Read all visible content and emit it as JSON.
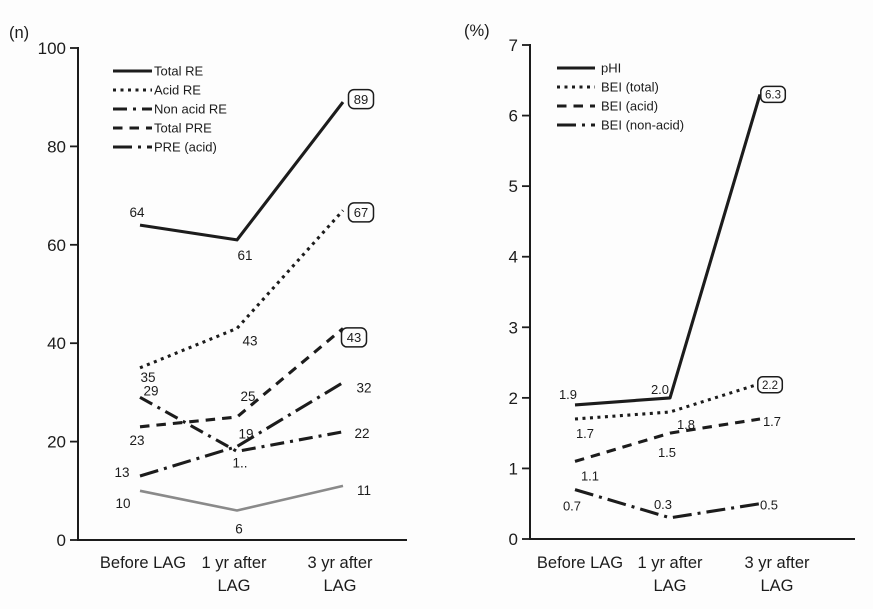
{
  "figure": {
    "background_color": "#fdfdfd",
    "ink_color": "#1c1c1c",
    "gray_line_color": "#8a8a8a"
  },
  "chart_data": [
    {
      "panel": "left",
      "type": "line",
      "title": "",
      "xlabel": "",
      "ylabel": "(n)",
      "ylim": [
        0,
        100
      ],
      "yticks": [
        0,
        20,
        40,
        60,
        80,
        100
      ],
      "grid": false,
      "legend_position": "top-left-inside",
      "categories": [
        "Before LAG",
        "1 yr after\nLAG",
        "3 yr after\nLAG"
      ],
      "series": [
        {
          "name": "Total RE",
          "in_legend": true,
          "style": "solid",
          "color": "#1c1c1c",
          "values": [
            64,
            61,
            89
          ],
          "point_labels": [
            {
              "text": "64",
              "dx": -3,
              "dy": -8,
              "boxed": false
            },
            {
              "text": "61",
              "dx": 8,
              "dy": 20,
              "boxed": false
            },
            {
              "text": "89",
              "dx": 18,
              "dy": -3,
              "boxed": true
            }
          ]
        },
        {
          "name": "Acid RE",
          "in_legend": true,
          "style": "dotted",
          "color": "#1c1c1c",
          "values": [
            35,
            43,
            67
          ],
          "point_labels": [
            {
              "text": "35",
              "dx": 8,
              "dy": 14,
              "boxed": false
            },
            {
              "text": "43",
              "dx": 13,
              "dy": 17,
              "boxed": false
            },
            {
              "text": "67",
              "dx": 18,
              "dy": 2,
              "boxed": true
            }
          ]
        },
        {
          "name": "Non acid RE",
          "in_legend": true,
          "style": "dash-dot",
          "color": "#1c1c1c",
          "values": [
            29,
            18,
            22
          ],
          "point_labels": [
            {
              "text": "29",
              "dx": 11,
              "dy": -2,
              "boxed": false
            },
            {
              "text": "1..",
              "dx": 3,
              "dy": 16,
              "boxed": false
            },
            {
              "text": "22",
              "dx": 19,
              "dy": 6,
              "boxed": false
            }
          ]
        },
        {
          "name": "Total PRE",
          "in_legend": true,
          "style": "dashed",
          "color": "#1c1c1c",
          "values": [
            23,
            25,
            43
          ],
          "point_labels": [
            {
              "text": "23",
              "dx": -3,
              "dy": 18,
              "boxed": false
            },
            {
              "text": "25",
              "dx": 11,
              "dy": -16,
              "boxed": false
            },
            {
              "text": "43",
              "dx": 11,
              "dy": 9,
              "boxed": true
            }
          ]
        },
        {
          "name": "PRE (acid)",
          "in_legend": true,
          "style": "long-dash-dot",
          "color": "#1c1c1c",
          "values": [
            13,
            19,
            32
          ],
          "point_labels": [
            {
              "text": "13",
              "dx": -18,
              "dy": 1,
              "boxed": false
            },
            {
              "text": "19",
              "dx": 9,
              "dy": -8,
              "boxed": false
            },
            {
              "text": "32",
              "dx": 21,
              "dy": 10,
              "boxed": false
            }
          ]
        },
        {
          "name": "",
          "in_legend": false,
          "style": "solid",
          "color": "#8a8a8a",
          "values": [
            10,
            6,
            11
          ],
          "point_labels": [
            {
              "text": "10",
              "dx": -17,
              "dy": 17,
              "boxed": false
            },
            {
              "text": "6",
              "dx": 2,
              "dy": 23,
              "boxed": false
            },
            {
              "text": "11",
              "dx": 21,
              "dy": 9,
              "boxed": false
            }
          ]
        }
      ]
    },
    {
      "panel": "right",
      "type": "line",
      "title": "",
      "xlabel": "",
      "ylabel": "(%)",
      "ylim": [
        0,
        7
      ],
      "yticks": [
        0,
        1,
        2,
        3,
        4,
        5,
        6,
        7
      ],
      "grid": false,
      "legend_position": "top-left-inside",
      "categories": [
        "Before LAG",
        "1 yr after\nLAG",
        "3 yr after\nLAG"
      ],
      "series": [
        {
          "name": "pHI",
          "in_legend": true,
          "style": "solid",
          "color": "#1c1c1c",
          "values": [
            1.9,
            2.0,
            6.3
          ],
          "point_labels": [
            {
              "text": "1.9",
              "dx": -7,
              "dy": -6,
              "boxed": false
            },
            {
              "text": "2.0",
              "dx": -10,
              "dy": -4,
              "boxed": false
            },
            {
              "text": "6.3",
              "dx": 13,
              "dy": 0,
              "boxed": true
            }
          ]
        },
        {
          "name": "BEI (total)",
          "in_legend": true,
          "style": "dotted",
          "color": "#1c1c1c",
          "values": [
            1.7,
            1.8,
            2.2
          ],
          "point_labels": [
            {
              "text": "1.7",
              "dx": 10,
              "dy": 19,
              "boxed": false
            },
            {
              "text": "1.8",
              "dx": 16,
              "dy": 17,
              "boxed": false
            },
            {
              "text": "2.2",
              "dx": 10,
              "dy": 1,
              "boxed": true
            }
          ]
        },
        {
          "name": "BEI (acid)",
          "in_legend": true,
          "style": "dashed",
          "color": "#1c1c1c",
          "values": [
            1.1,
            1.5,
            1.7
          ],
          "point_labels": [
            {
              "text": "1.1",
              "dx": 15,
              "dy": 19,
              "boxed": false
            },
            {
              "text": "1.5",
              "dx": -3,
              "dy": 24,
              "boxed": false
            },
            {
              "text": "1.7",
              "dx": 12,
              "dy": 7,
              "boxed": false
            }
          ]
        },
        {
          "name": "BEI (non-acid)",
          "in_legend": true,
          "style": "long-dash-dot",
          "color": "#1c1c1c",
          "values": [
            0.7,
            0.3,
            0.5
          ],
          "point_labels": [
            {
              "text": "0.7",
              "dx": -3,
              "dy": 21,
              "boxed": false
            },
            {
              "text": "0.3",
              "dx": -7,
              "dy": -9,
              "boxed": false
            },
            {
              "text": "0.5",
              "dx": 9,
              "dy": 6,
              "boxed": false
            }
          ]
        }
      ]
    }
  ]
}
